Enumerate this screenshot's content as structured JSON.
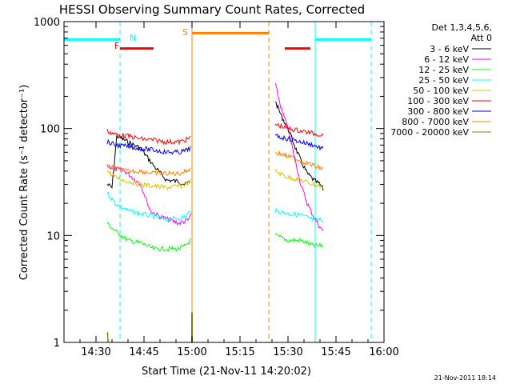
{
  "chart_data": {
    "type": "line",
    "title": "HESSI Observing Summary Count Rates, Corrected",
    "xlabel": "Start Time (21-Nov-11 14:20:02)",
    "ylabel": "Corrected Count Rate (s⁻¹ detector⁻¹)",
    "ylog": true,
    "ylim": [
      1,
      1000
    ],
    "xlim_minutes_after_14_20": [
      0,
      100
    ],
    "x_ticks": [
      {
        "m": 10,
        "label": "14:30"
      },
      {
        "m": 25,
        "label": "14:45"
      },
      {
        "m": 40,
        "label": "15:00"
      },
      {
        "m": 55,
        "label": "15:15"
      },
      {
        "m": 70,
        "label": "15:30"
      },
      {
        "m": 85,
        "label": "15:45"
      },
      {
        "m": 100,
        "label": "16:00"
      }
    ],
    "y_ticks": [
      {
        "v": 1,
        "label": "1"
      },
      {
        "v": 10,
        "label": "10"
      },
      {
        "v": 100,
        "label": "100"
      },
      {
        "v": 1000,
        "label": "1000"
      }
    ],
    "legend": {
      "placement": "right",
      "header": [
        "Det 1,3,4,5,6,",
        "Att 0"
      ]
    },
    "series": [
      {
        "name": "3 - 6 keV",
        "color": "#000000",
        "seg1": [
          [
            13.5,
            30
          ],
          [
            15,
            28
          ],
          [
            16.5,
            85
          ],
          [
            20,
            75
          ],
          [
            24,
            65
          ],
          [
            28,
            45
          ],
          [
            32,
            33
          ],
          [
            36,
            32
          ],
          [
            38,
            30
          ],
          [
            39.5,
            32
          ]
        ],
        "seg2": [
          [
            66,
            180
          ],
          [
            68,
            130
          ],
          [
            70,
            100
          ],
          [
            72,
            70
          ],
          [
            74,
            50
          ],
          [
            76,
            38
          ],
          [
            78,
            33
          ],
          [
            80,
            30
          ],
          [
            81,
            27
          ]
        ]
      },
      {
        "name": "6 - 12 keV",
        "color": "#ff00ff",
        "seg1": [
          [
            13.5,
            45
          ],
          [
            16,
            42
          ],
          [
            19,
            40
          ],
          [
            24,
            30
          ],
          [
            27,
            17
          ],
          [
            30,
            15
          ],
          [
            33,
            14
          ],
          [
            36,
            13
          ],
          [
            39,
            14
          ],
          [
            39.7,
            16
          ]
        ],
        "seg2": [
          [
            66,
            260
          ],
          [
            68,
            150
          ],
          [
            70,
            100
          ],
          [
            72,
            55
          ],
          [
            74,
            30
          ],
          [
            76,
            20
          ],
          [
            78,
            15
          ],
          [
            80,
            12
          ],
          [
            81,
            11
          ]
        ]
      },
      {
        "name": "12 - 25 keV",
        "color": "#00ff00",
        "seg1": [
          [
            13.5,
            13
          ],
          [
            16,
            11
          ],
          [
            20,
            9
          ],
          [
            24,
            8.5
          ],
          [
            28,
            7.5
          ],
          [
            32,
            7.5
          ],
          [
            36,
            7.5
          ],
          [
            38,
            8
          ],
          [
            39.5,
            9
          ]
        ],
        "seg2": [
          [
            66,
            10
          ],
          [
            70,
            9
          ],
          [
            74,
            9
          ],
          [
            76,
            8.5
          ],
          [
            78,
            8
          ],
          [
            80,
            8
          ],
          [
            81,
            8
          ]
        ]
      },
      {
        "name": "25 - 50 keV",
        "color": "#00ffff",
        "seg1": [
          [
            13.5,
            25
          ],
          [
            16,
            20
          ],
          [
            20,
            17
          ],
          [
            24,
            16
          ],
          [
            28,
            15
          ],
          [
            32,
            14
          ],
          [
            36,
            14.5
          ],
          [
            38,
            15
          ],
          [
            39.5,
            17
          ]
        ],
        "seg2": [
          [
            66,
            17
          ],
          [
            70,
            16
          ],
          [
            74,
            15.5
          ],
          [
            78,
            14
          ],
          [
            80,
            14
          ],
          [
            81,
            14
          ]
        ]
      },
      {
        "name": "50 - 100 keV",
        "color": "#e0c000",
        "seg1": [
          [
            13.5,
            40
          ],
          [
            16,
            35
          ],
          [
            20,
            32
          ],
          [
            24,
            30
          ],
          [
            28,
            29
          ],
          [
            32,
            28
          ],
          [
            36,
            29
          ],
          [
            38,
            30
          ],
          [
            39.5,
            32
          ]
        ],
        "seg2": [
          [
            66,
            40
          ],
          [
            70,
            35
          ],
          [
            74,
            33
          ],
          [
            78,
            30
          ],
          [
            80,
            29
          ],
          [
            81,
            28
          ]
        ]
      },
      {
        "name": "100 - 300 keV",
        "color": "#ff0000",
        "seg1": [
          [
            13.5,
            95
          ],
          [
            16,
            88
          ],
          [
            20,
            85
          ],
          [
            24,
            80
          ],
          [
            28,
            78
          ],
          [
            32,
            75
          ],
          [
            36,
            75
          ],
          [
            38,
            78
          ],
          [
            39.5,
            82
          ]
        ],
        "seg2": [
          [
            66,
            110
          ],
          [
            70,
            100
          ],
          [
            74,
            95
          ],
          [
            78,
            90
          ],
          [
            80,
            88
          ],
          [
            81,
            86
          ]
        ]
      },
      {
        "name": "300 - 800 keV",
        "color": "#0000ff",
        "seg1": [
          [
            13.5,
            75
          ],
          [
            16,
            70
          ],
          [
            20,
            68
          ],
          [
            24,
            65
          ],
          [
            28,
            63
          ],
          [
            32,
            60
          ],
          [
            36,
            60
          ],
          [
            38,
            62
          ],
          [
            39.5,
            66
          ]
        ],
        "seg2": [
          [
            66,
            85
          ],
          [
            70,
            80
          ],
          [
            74,
            75
          ],
          [
            78,
            70
          ],
          [
            80,
            66
          ],
          [
            81,
            65
          ]
        ]
      },
      {
        "name": "800 - 7000 keV",
        "color": "#ff8000",
        "seg1": [
          [
            13.5,
            45
          ],
          [
            16,
            42
          ],
          [
            20,
            40
          ],
          [
            24,
            40
          ],
          [
            28,
            38
          ],
          [
            32,
            38
          ],
          [
            36,
            38
          ],
          [
            38,
            40
          ],
          [
            39.5,
            42
          ]
        ],
        "seg2": [
          [
            66,
            60
          ],
          [
            70,
            55
          ],
          [
            74,
            50
          ],
          [
            78,
            45
          ],
          [
            80,
            43
          ],
          [
            81,
            42
          ]
        ]
      },
      {
        "name": "7000 - 20000 keV",
        "color": "#808000",
        "seg1": [
          [
            13.5,
            1.2
          ],
          [
            14,
            1.0
          ]
        ],
        "seg2": []
      }
    ],
    "annotations": [
      {
        "label": "N",
        "color": "#00ffff"
      },
      {
        "label": "F",
        "color": "#ff0000"
      },
      {
        "label": "S",
        "color": "#ff8000"
      }
    ],
    "status_bars": [
      {
        "color": "#00ffff",
        "m0": 0,
        "m1": 17.5,
        "v": 680
      },
      {
        "color": "#ff0000",
        "m0": 17.5,
        "m1": 28,
        "v": 560
      },
      {
        "color": "#ff8000",
        "m0": 40,
        "m1": 64,
        "v": 780
      },
      {
        "color": "#ff0000",
        "m0": 69,
        "m1": 77,
        "v": 560
      },
      {
        "color": "#00ffff",
        "m0": 78.5,
        "m1": 96,
        "v": 680
      }
    ],
    "vlines": [
      {
        "m": 0,
        "color": "#00ffff",
        "dash": false
      },
      {
        "m": 17.5,
        "color": "#00ffff",
        "dash": true
      },
      {
        "m": 40,
        "color": "#ff8000",
        "dash": false
      },
      {
        "m": 64,
        "color": "#ff8000",
        "dash": true
      },
      {
        "m": 78.5,
        "color": "#00ffff",
        "dash": false
      },
      {
        "m": 96,
        "color": "#00ffff",
        "dash": true
      }
    ],
    "footer_date": "21-Nov-2011 18:14"
  }
}
